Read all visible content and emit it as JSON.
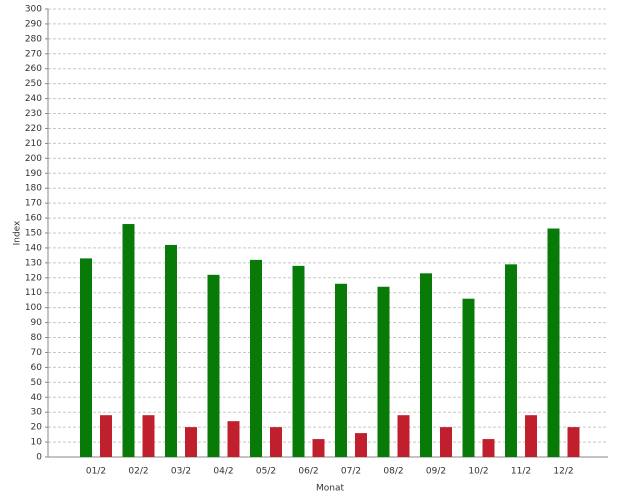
{
  "chart_data": {
    "type": "bar",
    "x_label": "Monat",
    "y_label": "Index",
    "categories": [
      "01/2",
      "02/2",
      "03/2",
      "04/2",
      "05/2",
      "06/2",
      "07/2",
      "08/2",
      "09/2",
      "10/2",
      "11/2",
      "12/2"
    ],
    "series": [
      {
        "color": "#087a08",
        "values": [
          133,
          156,
          142,
          122,
          132,
          128,
          116,
          114,
          123,
          106,
          129,
          153
        ]
      },
      {
        "color": "#c0202e",
        "values": [
          28,
          28,
          20,
          24,
          20,
          12,
          16,
          28,
          20,
          12,
          28,
          20
        ]
      }
    ],
    "ylim": [
      0,
      300
    ],
    "yticks": [
      0,
      10,
      20,
      30,
      40,
      50,
      60,
      70,
      80,
      90,
      100,
      110,
      120,
      130,
      140,
      150,
      160,
      170,
      180,
      190,
      200,
      210,
      220,
      230,
      240,
      250,
      260,
      270,
      280,
      290,
      300
    ],
    "grid": true
  }
}
